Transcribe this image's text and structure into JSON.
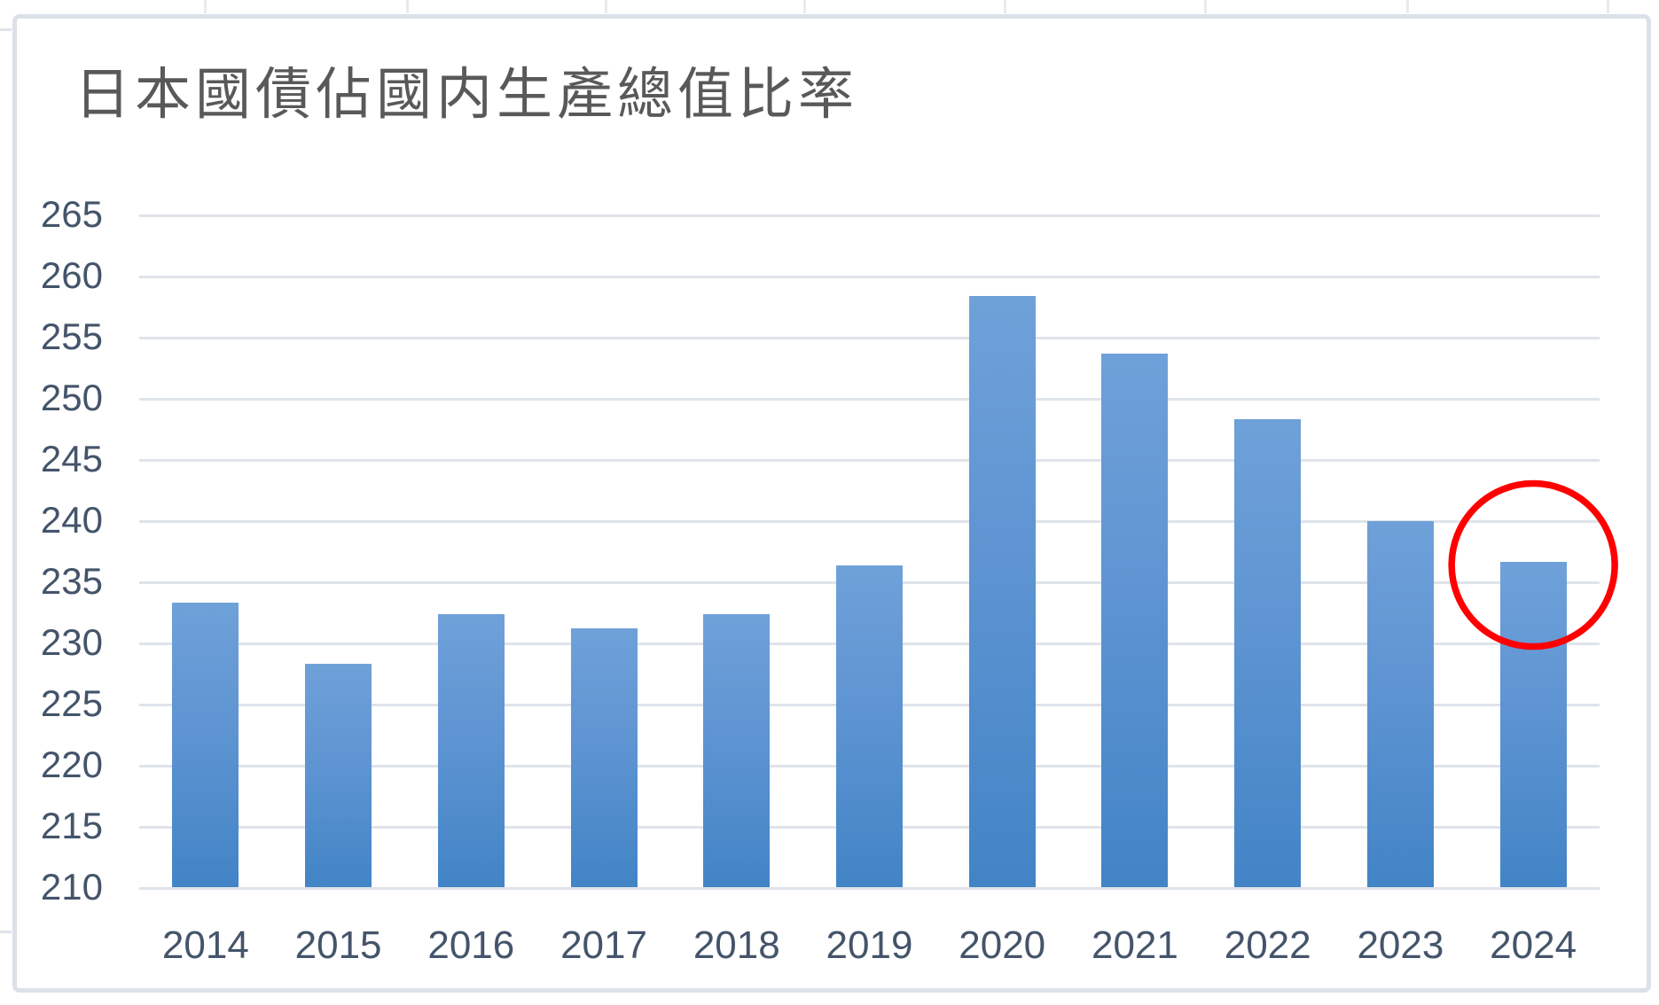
{
  "title": "日本國債佔國内生產總值比率",
  "colors": {
    "title_text": "#595959",
    "axis_label": "#44546a",
    "gridline": "#dfe3ea",
    "bar_gradient_top": "#6fa1d9",
    "bar_gradient_bottom": "#4284c6",
    "frame_border": "#dce1e9",
    "highlight_circle": "#ff0000",
    "background": "#ffffff"
  },
  "chart_data": {
    "type": "bar",
    "title": "日本國債佔國内生產總值比率",
    "categories": [
      "2014",
      "2015",
      "2016",
      "2017",
      "2018",
      "2019",
      "2020",
      "2021",
      "2022",
      "2023",
      "2024"
    ],
    "values": [
      233.3,
      228.3,
      232.4,
      231.2,
      232.4,
      236.4,
      258.4,
      253.7,
      248.3,
      240.0,
      236.7
    ],
    "series_name": "日本國債佔國内生產總值比率 (%)",
    "xlabel": "",
    "ylabel": "",
    "ylim": [
      210,
      265
    ],
    "yticks": [
      265,
      260,
      255,
      250,
      245,
      240,
      235,
      230,
      225,
      220,
      215,
      210
    ],
    "grid": true,
    "legend": false,
    "annotation": {
      "shape": "circle",
      "target_category": "2024",
      "color": "#ff0000",
      "meaning": "red circle highlighting the 2024 bar"
    }
  }
}
